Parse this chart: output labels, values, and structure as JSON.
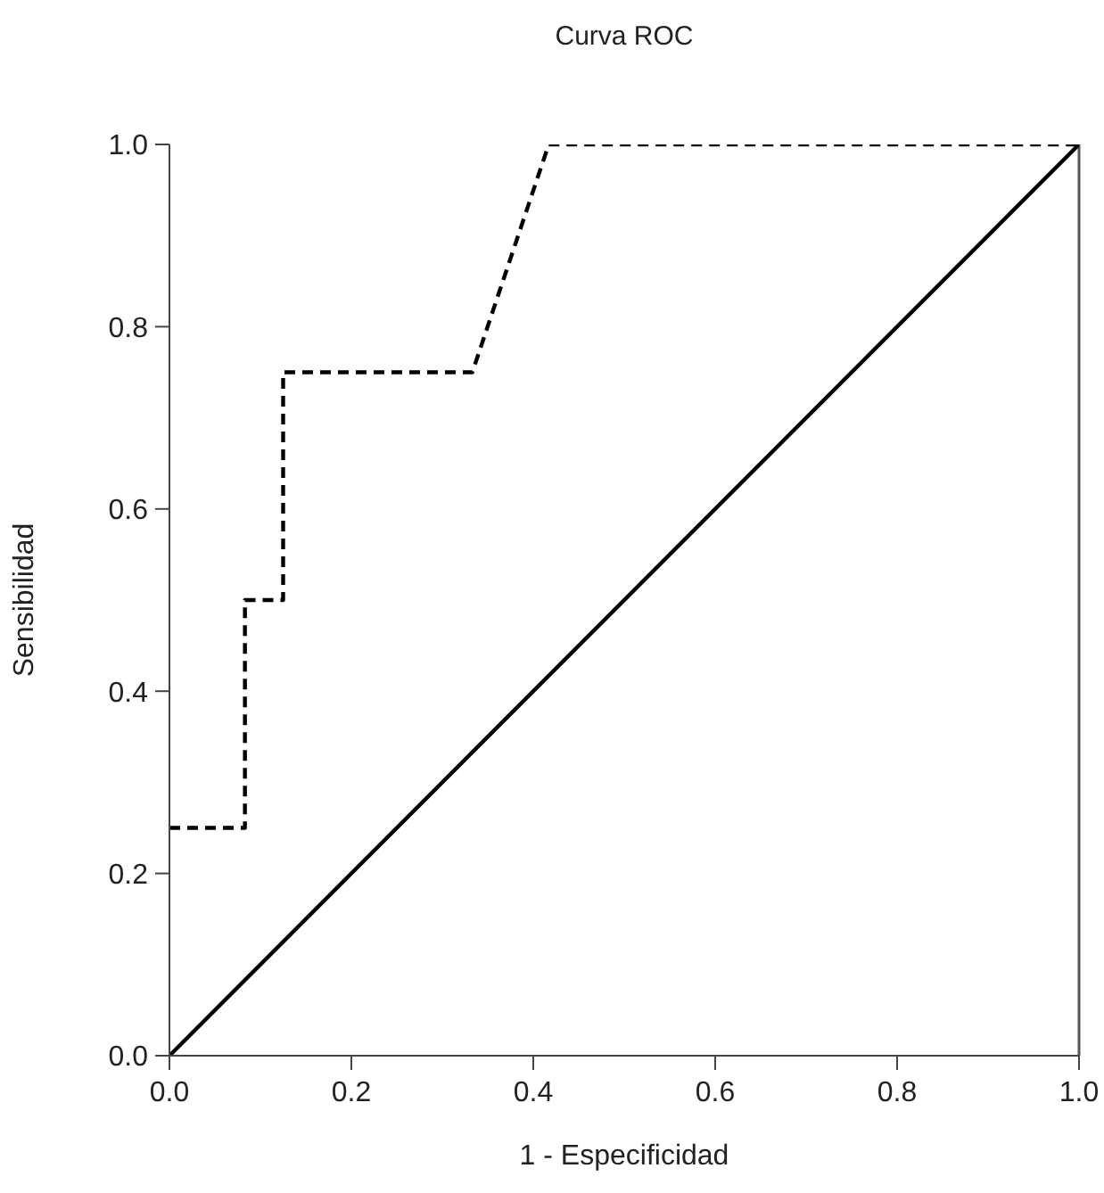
{
  "chart_data": {
    "type": "line",
    "title": "Curva ROC",
    "xlabel": "1 - Especificidad",
    "ylabel": "Sensibilidad",
    "xlim": [
      0,
      1
    ],
    "ylim": [
      0,
      1
    ],
    "xticks": [
      {
        "value": 0,
        "label": "0.0"
      },
      {
        "value": 0.2,
        "label": "0.2"
      },
      {
        "value": 0.4,
        "label": "0.4"
      },
      {
        "value": 0.6,
        "label": "0.6"
      },
      {
        "value": 0.8,
        "label": "0.8"
      },
      {
        "value": 1,
        "label": "1.0"
      }
    ],
    "yticks": [
      {
        "value": 0,
        "label": "0.0"
      },
      {
        "value": 0.2,
        "label": "0.2"
      },
      {
        "value": 0.4,
        "label": "0.4"
      },
      {
        "value": 0.6,
        "label": "0.6"
      },
      {
        "value": 0.8,
        "label": "0.8"
      },
      {
        "value": 1,
        "label": "1.0"
      }
    ],
    "series": [
      {
        "color": "#000000",
        "line_style": "dashed",
        "x": [
          0,
          0.083,
          0.083,
          0.125,
          0.125,
          0.333,
          0.417,
          1
        ],
        "values": [
          0.25,
          0.25,
          0.5,
          0.5,
          0.75,
          0.75,
          1,
          1
        ]
      },
      {
        "color": "#000000",
        "line_style": "solid",
        "x": [
          0,
          1
        ],
        "values": [
          0,
          1
        ]
      }
    ],
    "ref_lines": [
      {
        "axis": "x",
        "value": 1,
        "color": "#555555"
      }
    ],
    "grid": false,
    "legend": false,
    "marker": "none"
  }
}
